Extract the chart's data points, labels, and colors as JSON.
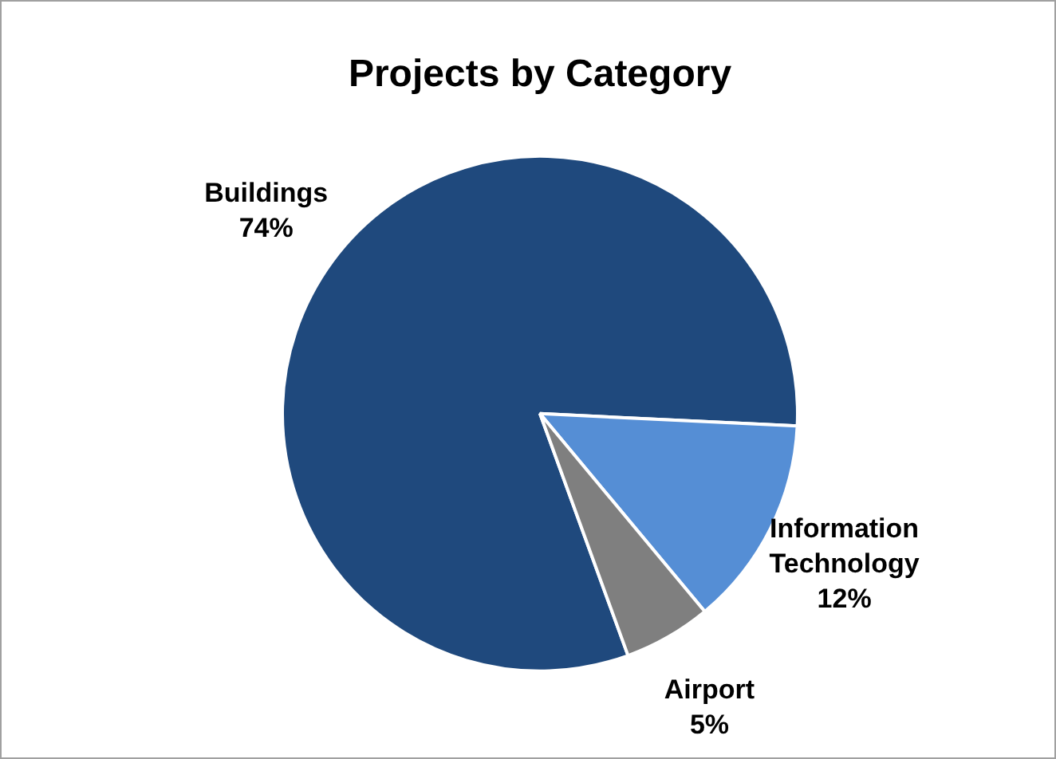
{
  "chart_data": {
    "type": "pie",
    "title": "Projects by Category",
    "categories": [
      "Buildings",
      "Information Technology",
      "Airport"
    ],
    "values": [
      74,
      12,
      5
    ],
    "value_labels": [
      "74%",
      "12%",
      "5%"
    ],
    "colors": [
      "#1f497d",
      "#558ed5",
      "#7f7f7f"
    ],
    "legend": false
  }
}
